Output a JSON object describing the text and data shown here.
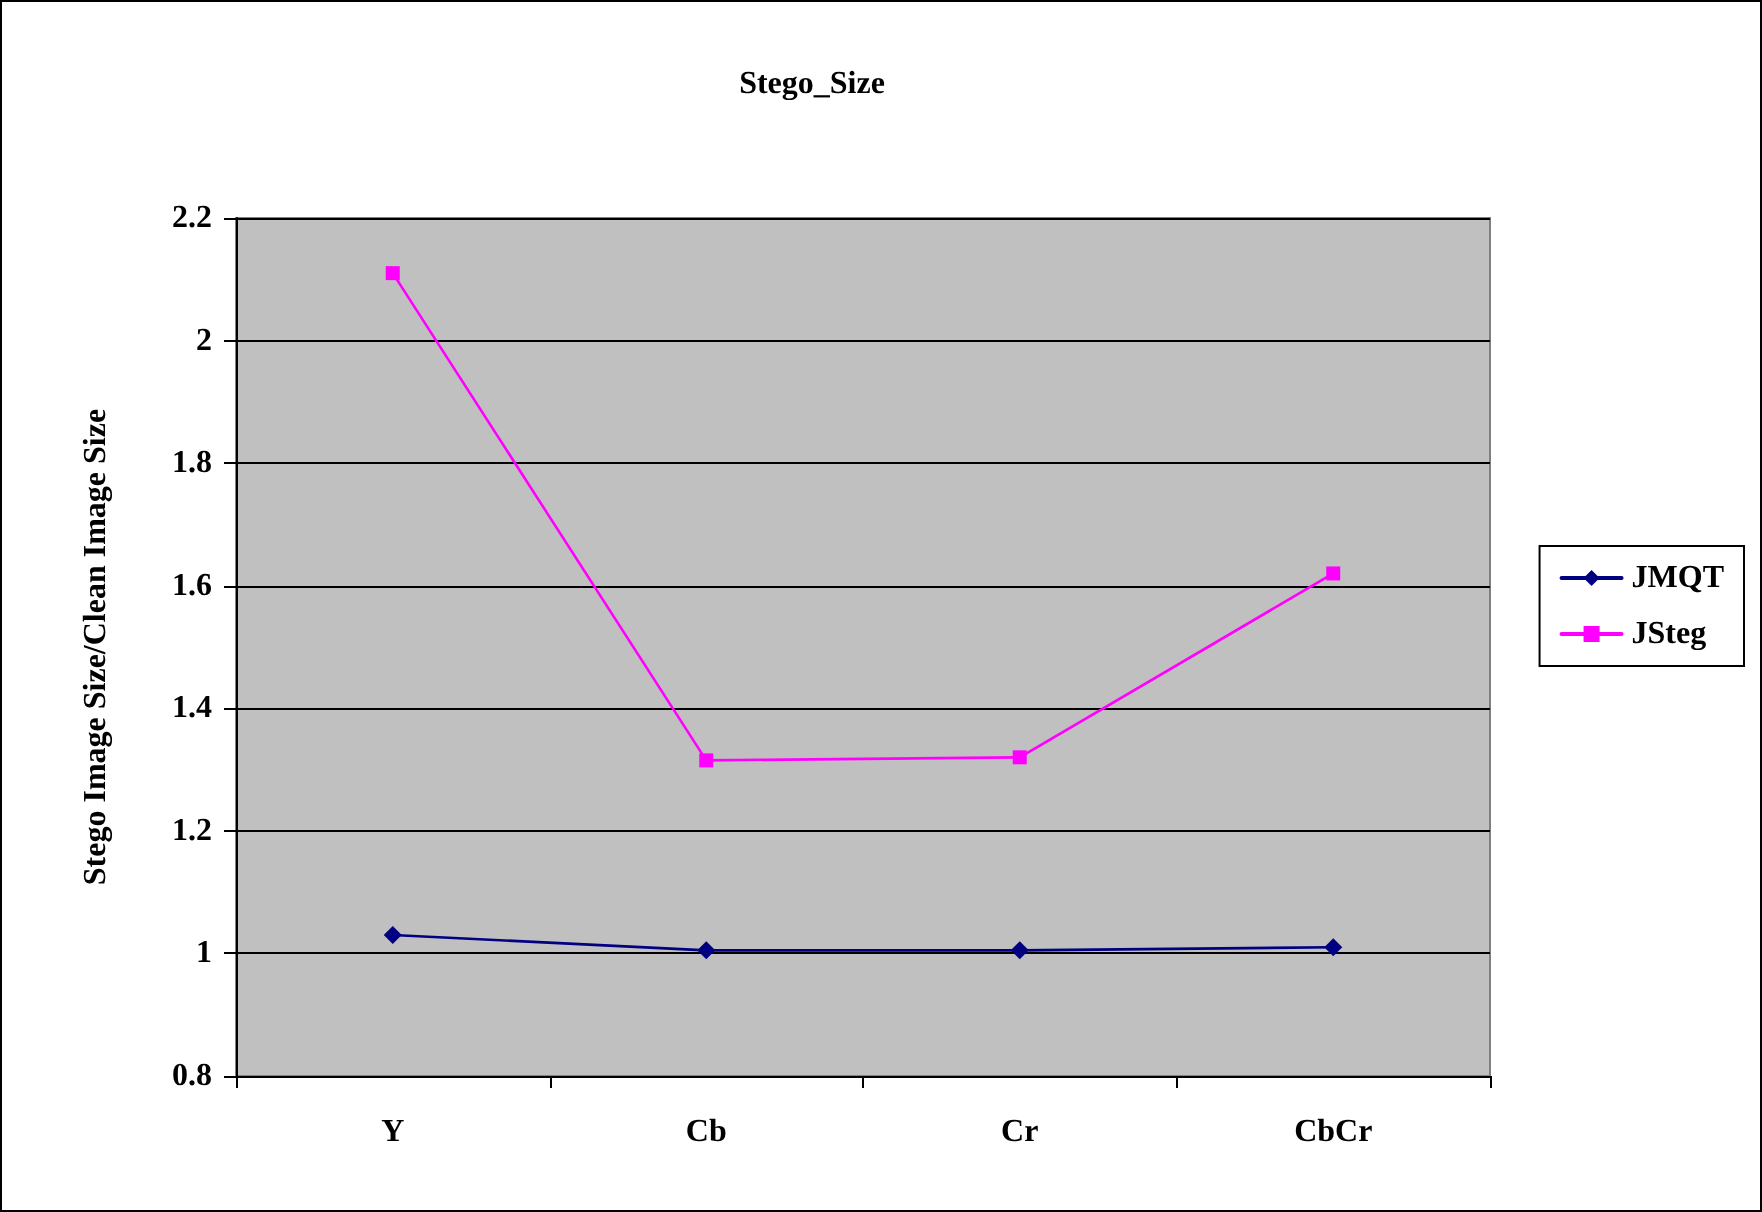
{
  "chart_data": {
    "type": "line",
    "title": "Stego_Size",
    "ylabel": "Stego Image Size/Clean Image Size",
    "categories": [
      "Y",
      "Cb",
      "Cr",
      "CbCr"
    ],
    "series": [
      {
        "name": "JMQT",
        "color": "#000080",
        "marker": "diamond",
        "values": [
          1.03,
          1.005,
          1.005,
          1.01
        ]
      },
      {
        "name": "JSteg",
        "color": "#ff00ff",
        "marker": "square",
        "values": [
          2.11,
          1.315,
          1.32,
          1.62
        ]
      }
    ],
    "ylim": [
      0.8,
      2.2
    ],
    "yticks": [
      0.8,
      1,
      1.2,
      1.4,
      1.6,
      1.8,
      2,
      2.2
    ],
    "grid": "y",
    "legend": "right",
    "line_style": "solid"
  }
}
